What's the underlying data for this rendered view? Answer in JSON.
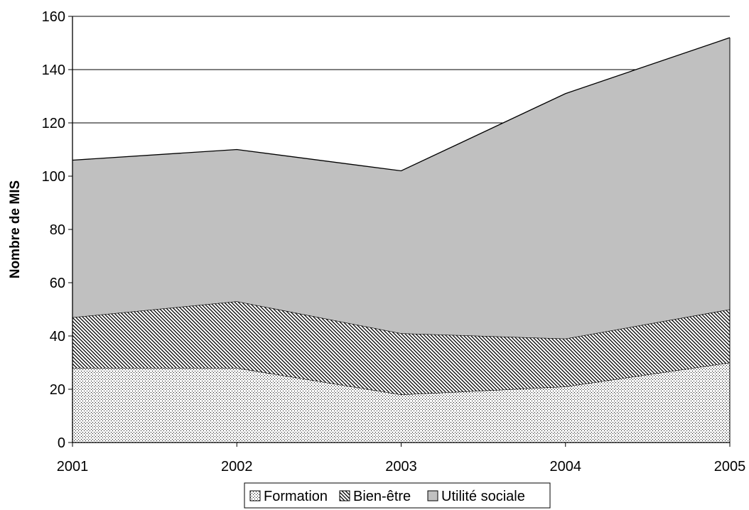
{
  "chart_data": {
    "type": "area",
    "stacked": true,
    "title": "",
    "xlabel": "",
    "ylabel": "Nombre de MIS",
    "categories": [
      "2001",
      "2002",
      "2003",
      "2004",
      "2005"
    ],
    "ylim": [
      0,
      160
    ],
    "yticks": [
      "0",
      "20",
      "40",
      "60",
      "80",
      "100",
      "120",
      "140",
      "160"
    ],
    "grid": "horizontal",
    "legend_position": "bottom",
    "series": [
      {
        "name": "Formation",
        "values": [
          28,
          28,
          18,
          21,
          30
        ],
        "pattern": "dots"
      },
      {
        "name": "Bien-être",
        "values": [
          19,
          25,
          23,
          18,
          20
        ],
        "pattern": "diagonal-hatch"
      },
      {
        "name": "Utilité sociale",
        "values": [
          59,
          57,
          61,
          92,
          102
        ],
        "pattern": "solid"
      }
    ],
    "colors": {
      "utilite_fill": "#c0c0c0",
      "line": "#000000",
      "grid": "#000000"
    }
  }
}
